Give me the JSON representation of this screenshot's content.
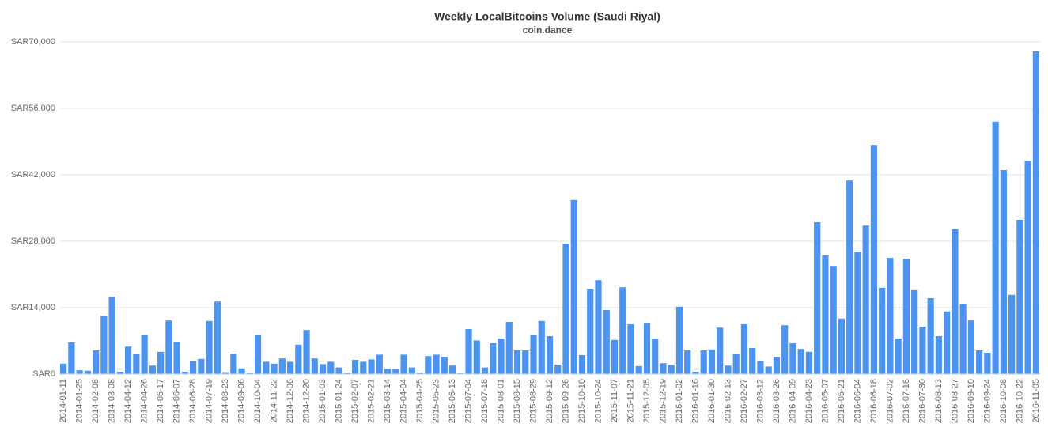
{
  "chart_data": {
    "type": "bar",
    "title": "Weekly LocalBitcoins Volume (Saudi Riyal)",
    "subtitle": "coin.dance",
    "categories": [
      "2014-01-11",
      null,
      "2014-01-25",
      null,
      "2014-02-08",
      null,
      "2014-03-08",
      null,
      "2014-04-12",
      null,
      "2014-04-26",
      null,
      "2014-05-17",
      null,
      "2014-06-07",
      null,
      "2014-06-28",
      null,
      "2014-07-19",
      null,
      "2014-08-23",
      null,
      "2014-09-06",
      null,
      "2014-10-04",
      null,
      "2014-11-22",
      null,
      "2014-12-06",
      null,
      "2014-12-20",
      null,
      "2015-01-03",
      null,
      "2015-01-24",
      null,
      "2015-02-07",
      null,
      "2015-02-21",
      null,
      "2015-03-14",
      null,
      "2015-04-04",
      null,
      "2015-04-25",
      null,
      "2015-05-23",
      null,
      "2015-06-13",
      null,
      "2015-07-04",
      null,
      "2015-07-18",
      null,
      "2015-08-01",
      null,
      "2015-08-15",
      null,
      "2015-08-29",
      null,
      "2015-09-12",
      null,
      "2015-09-26",
      null,
      "2015-10-10",
      null,
      "2015-10-24",
      null,
      "2015-11-07",
      null,
      "2015-11-21",
      null,
      "2015-12-05",
      null,
      "2015-12-19",
      null,
      "2016-01-02",
      null,
      "2016-01-16",
      null,
      "2016-01-30",
      null,
      "2016-02-13",
      null,
      "2016-02-27",
      null,
      "2016-03-12",
      null,
      "2016-03-26",
      null,
      "2016-04-09",
      null,
      "2016-04-23",
      null,
      "2016-05-07",
      null,
      "2016-05-21",
      null,
      "2016-06-04",
      null,
      "2016-06-18",
      null,
      "2016-07-02",
      null,
      "2016-07-16",
      null,
      "2016-07-30",
      null,
      "2016-08-13",
      null,
      "2016-08-27",
      null,
      "2016-09-10",
      null,
      "2016-09-24",
      null,
      "2016-10-08",
      null,
      "2016-10-22",
      null,
      "2016-11-05"
    ],
    "values": [
      2200,
      6700,
      800,
      700,
      5000,
      12300,
      16300,
      500,
      5800,
      4200,
      8200,
      1800,
      4700,
      11300,
      6800,
      500,
      2700,
      3200,
      11200,
      15300,
      400,
      4300,
      1200,
      200,
      8200,
      2600,
      2200,
      3300,
      2600,
      6200,
      9300,
      3300,
      2100,
      2600,
      1400,
      300,
      3000,
      2600,
      3100,
      4100,
      1100,
      1100,
      4100,
      1400,
      300,
      3800,
      4100,
      3600,
      1800,
      150,
      9500,
      7100,
      1400,
      6500,
      7500,
      11000,
      5000,
      5000,
      8200,
      11200,
      8000,
      2000,
      27500,
      36700,
      4000,
      18000,
      19800,
      13500,
      7200,
      18300,
      10500,
      1700,
      10800,
      7500,
      2300,
      2000,
      14200,
      5000,
      500,
      5000,
      5200,
      9800,
      1800,
      4200,
      10500,
      5500,
      2800,
      1600,
      3600,
      10300,
      6500,
      5300,
      4700,
      32000,
      25000,
      22800,
      11700,
      40800,
      25800,
      31300,
      48300,
      18200,
      24500,
      7500,
      24300,
      17700,
      10000,
      16000,
      8000,
      13200,
      30500,
      14800,
      11300,
      5000,
      4500,
      53200,
      43000,
      16700,
      32500,
      45000,
      68000
    ],
    "color": "#4d94f0",
    "ylim": [
      0,
      70000
    ],
    "yticks": [
      {
        "value": 0,
        "label": "SAR0"
      },
      {
        "value": 14000,
        "label": "SAR14,000"
      },
      {
        "value": 28000,
        "label": "SAR28,000"
      },
      {
        "value": 42000,
        "label": "SAR42,000"
      },
      {
        "value": 56000,
        "label": "SAR56,000"
      },
      {
        "value": 70000,
        "label": "SAR70,000"
      }
    ],
    "grid": true
  }
}
